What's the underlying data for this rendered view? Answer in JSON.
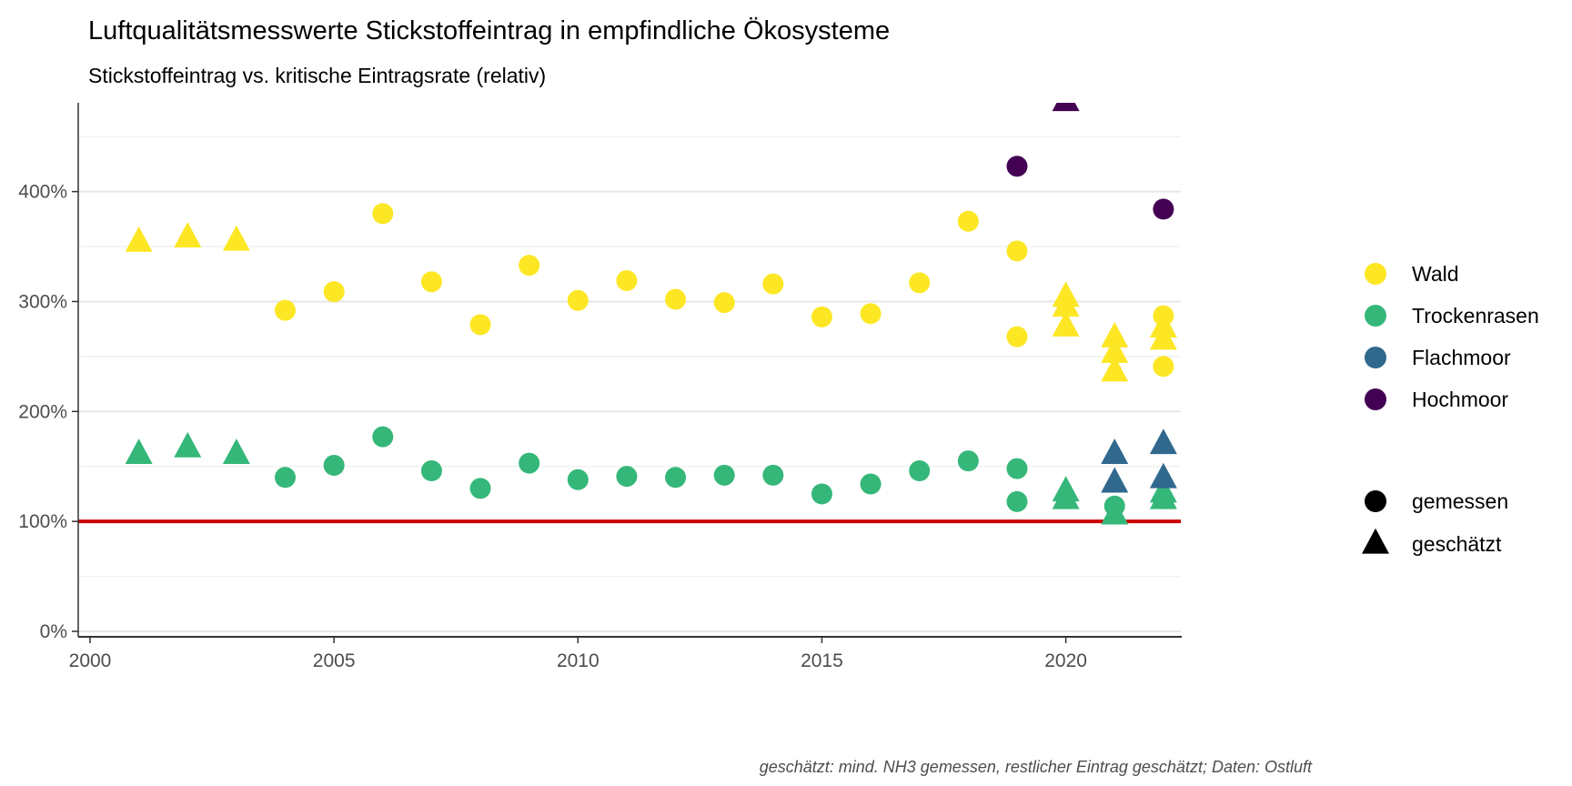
{
  "chart_data": {
    "type": "scatter",
    "title": "Luftqualitätsmesswerte Stickstoffeintrag in empfindliche Ökosysteme",
    "subtitle": "Stickstoffeintrag vs. kritische Eintragsrate (relativ)",
    "caption": "geschätzt: mind. NH3 gemessen, restlicher Eintrag geschätzt; Daten: Ostluft",
    "xlabel": "",
    "ylabel": "",
    "xlim": [
      1999.8,
      2022.3
    ],
    "ylim": [
      0,
      480
    ],
    "x_ticks": [
      2000,
      2005,
      2010,
      2015,
      2020
    ],
    "y_ticks": [
      0,
      100,
      200,
      300,
      400
    ],
    "y_tick_labels": [
      "0%",
      "100%",
      "200%",
      "300%",
      "400%"
    ],
    "grid": true,
    "reference_line": {
      "y": 100,
      "color": "#cc0000"
    },
    "legend_position": "right",
    "color_legend": [
      {
        "name": "Wald",
        "color": "#fde725"
      },
      {
        "name": "Trockenrasen",
        "color": "#35b779"
      },
      {
        "name": "Flachmoor",
        "color": "#31688e"
      },
      {
        "name": "Hochmoor",
        "color": "#440154"
      }
    ],
    "shape_legend": [
      {
        "name": "gemessen",
        "shape": "circle"
      },
      {
        "name": "geschätzt",
        "shape": "triangle"
      }
    ],
    "series": [
      {
        "name": "Wald",
        "color": "#fde725",
        "points": [
          {
            "x": 2001,
            "y": 354,
            "shape": "triangle"
          },
          {
            "x": 2002,
            "y": 358,
            "shape": "triangle"
          },
          {
            "x": 2003,
            "y": 355,
            "shape": "triangle"
          },
          {
            "x": 2004,
            "y": 292,
            "shape": "circle"
          },
          {
            "x": 2005,
            "y": 309,
            "shape": "circle"
          },
          {
            "x": 2006,
            "y": 380,
            "shape": "circle"
          },
          {
            "x": 2007,
            "y": 318,
            "shape": "circle"
          },
          {
            "x": 2008,
            "y": 279,
            "shape": "circle"
          },
          {
            "x": 2009,
            "y": 333,
            "shape": "circle"
          },
          {
            "x": 2010,
            "y": 301,
            "shape": "circle"
          },
          {
            "x": 2011,
            "y": 319,
            "shape": "circle"
          },
          {
            "x": 2012,
            "y": 302,
            "shape": "circle"
          },
          {
            "x": 2013,
            "y": 299,
            "shape": "circle"
          },
          {
            "x": 2014,
            "y": 316,
            "shape": "circle"
          },
          {
            "x": 2015,
            "y": 286,
            "shape": "circle"
          },
          {
            "x": 2016,
            "y": 289,
            "shape": "circle"
          },
          {
            "x": 2017,
            "y": 317,
            "shape": "circle"
          },
          {
            "x": 2018,
            "y": 373,
            "shape": "circle"
          },
          {
            "x": 2019,
            "y": 346,
            "shape": "circle"
          },
          {
            "x": 2019,
            "y": 268,
            "shape": "circle"
          },
          {
            "x": 2020,
            "y": 304,
            "shape": "triangle"
          },
          {
            "x": 2020,
            "y": 295,
            "shape": "triangle"
          },
          {
            "x": 2020,
            "y": 277,
            "shape": "triangle"
          },
          {
            "x": 2021,
            "y": 267,
            "shape": "triangle"
          },
          {
            "x": 2021,
            "y": 253,
            "shape": "triangle"
          },
          {
            "x": 2021,
            "y": 236,
            "shape": "triangle"
          },
          {
            "x": 2022,
            "y": 287,
            "shape": "circle"
          },
          {
            "x": 2022,
            "y": 276,
            "shape": "triangle"
          },
          {
            "x": 2022,
            "y": 265,
            "shape": "triangle"
          },
          {
            "x": 2022,
            "y": 241,
            "shape": "circle"
          }
        ]
      },
      {
        "name": "Trockenrasen",
        "color": "#35b779",
        "points": [
          {
            "x": 2001,
            "y": 161,
            "shape": "triangle"
          },
          {
            "x": 2002,
            "y": 167,
            "shape": "triangle"
          },
          {
            "x": 2003,
            "y": 161,
            "shape": "triangle"
          },
          {
            "x": 2004,
            "y": 140,
            "shape": "circle"
          },
          {
            "x": 2005,
            "y": 151,
            "shape": "circle"
          },
          {
            "x": 2006,
            "y": 177,
            "shape": "circle"
          },
          {
            "x": 2007,
            "y": 146,
            "shape": "circle"
          },
          {
            "x": 2008,
            "y": 130,
            "shape": "circle"
          },
          {
            "x": 2009,
            "y": 153,
            "shape": "circle"
          },
          {
            "x": 2010,
            "y": 138,
            "shape": "circle"
          },
          {
            "x": 2011,
            "y": 141,
            "shape": "circle"
          },
          {
            "x": 2012,
            "y": 140,
            "shape": "circle"
          },
          {
            "x": 2013,
            "y": 142,
            "shape": "circle"
          },
          {
            "x": 2014,
            "y": 142,
            "shape": "circle"
          },
          {
            "x": 2015,
            "y": 125,
            "shape": "circle"
          },
          {
            "x": 2016,
            "y": 134,
            "shape": "circle"
          },
          {
            "x": 2017,
            "y": 146,
            "shape": "circle"
          },
          {
            "x": 2018,
            "y": 155,
            "shape": "circle"
          },
          {
            "x": 2019,
            "y": 148,
            "shape": "circle"
          },
          {
            "x": 2019,
            "y": 118,
            "shape": "circle"
          },
          {
            "x": 2020,
            "y": 127,
            "shape": "triangle"
          },
          {
            "x": 2020,
            "y": 120,
            "shape": "triangle"
          },
          {
            "x": 2021,
            "y": 114,
            "shape": "circle"
          },
          {
            "x": 2021,
            "y": 106,
            "shape": "triangle"
          },
          {
            "x": 2022,
            "y": 126,
            "shape": "triangle"
          },
          {
            "x": 2022,
            "y": 120,
            "shape": "triangle"
          }
        ]
      },
      {
        "name": "Flachmoor",
        "color": "#31688e",
        "points": [
          {
            "x": 2021,
            "y": 161,
            "shape": "triangle"
          },
          {
            "x": 2021,
            "y": 135,
            "shape": "triangle"
          },
          {
            "x": 2022,
            "y": 170,
            "shape": "triangle"
          },
          {
            "x": 2022,
            "y": 139,
            "shape": "triangle"
          }
        ]
      },
      {
        "name": "Hochmoor",
        "color": "#440154",
        "points": [
          {
            "x": 2019,
            "y": 423,
            "shape": "circle"
          },
          {
            "x": 2020,
            "y": 482,
            "shape": "triangle"
          },
          {
            "x": 2022,
            "y": 384,
            "shape": "circle"
          }
        ]
      }
    ]
  }
}
